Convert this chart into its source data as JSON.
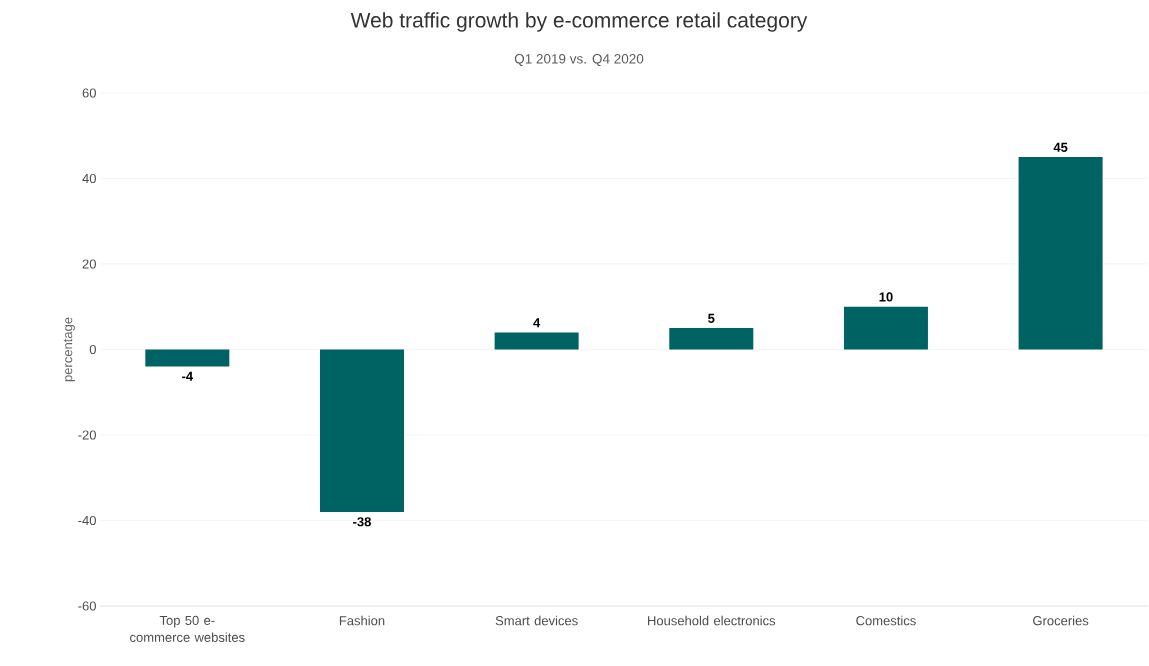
{
  "chart_data": {
    "type": "bar",
    "title": "Web traffic growth by e-commerce retail category",
    "subtitle": "Q1 2019 vs. Q4 2020",
    "ylabel": "percentage",
    "categories": [
      "Top 50 e-commerce websites",
      "Fashion",
      "Smart devices",
      "Household electronics",
      "Comestics",
      "Groceries"
    ],
    "values": [
      -4,
      -38,
      4,
      5,
      10,
      45
    ],
    "color": "#006363",
    "ylim": [
      -60,
      60
    ],
    "yticks": [
      -60,
      -40,
      -20,
      0,
      20,
      40,
      60
    ],
    "grid": "y",
    "data_labels": true
  }
}
